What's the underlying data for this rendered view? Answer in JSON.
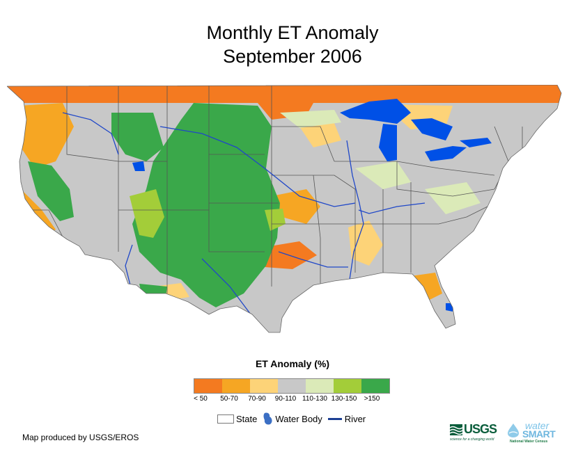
{
  "title": {
    "line1": "Monthly ET Anomaly",
    "line2": "September 2006"
  },
  "legend": {
    "title": "ET Anomaly (%)",
    "classes": [
      {
        "label": "< 50",
        "color": "#f47a20"
      },
      {
        "label": "50-70",
        "color": "#f6a623"
      },
      {
        "label": "70-90",
        "color": "#fdd378"
      },
      {
        "label": "90-110",
        "color": "#c8c8c8"
      },
      {
        "label": "110-130",
        "color": "#dbeab8"
      },
      {
        "label": "130-150",
        "color": "#a3cd39"
      },
      {
        "label": ">150",
        "color": "#3aa84a"
      }
    ],
    "keys": {
      "state": "State",
      "water_body": "Water Body",
      "river": "River"
    }
  },
  "map": {
    "water_color": "#0050e6",
    "river_color": "#1f47c8",
    "border_color": "#555555"
  },
  "credit": "Map produced by USGS/EROS",
  "logos": {
    "usgs": {
      "name": "USGS",
      "tagline": "science for a changing world",
      "icon": "usgs-waves-icon"
    },
    "watersmart": {
      "word1": "water",
      "word2": "SMART",
      "tagline": "National Water Census",
      "icon": "water-drop-icon"
    }
  }
}
